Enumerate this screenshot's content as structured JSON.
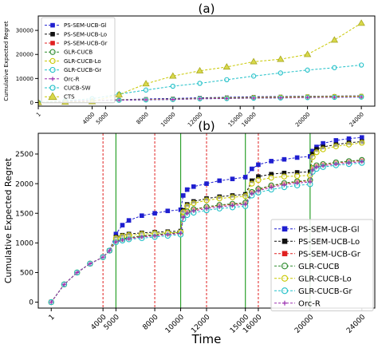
{
  "chart_data": [
    {
      "panel_label": "(a)",
      "type": "line",
      "title": "",
      "xlabel": "",
      "ylabel": "Cumulative Expected Regret",
      "xlim": [
        0,
        25000
      ],
      "ylim": [
        -1500,
        36000
      ],
      "xticks": [
        1,
        4000,
        5000,
        8000,
        10000,
        12000,
        15000,
        16000,
        20000,
        24000
      ],
      "yticks": [
        0,
        10000,
        20000,
        30000
      ],
      "legend_position": "top-left",
      "series": [
        {
          "name": "PS-SEM-UCB-Gl",
          "color": "#1f1fd0",
          "dash": "3,2",
          "marker": "square",
          "x": [
            1,
            2000,
            4000,
            6000,
            8000,
            10000,
            12000,
            14000,
            16000,
            18000,
            20000,
            22000,
            24000
          ],
          "y": [
            0,
            500,
            800,
            1200,
            1500,
            1700,
            2000,
            2200,
            2400,
            2500,
            2600,
            2700,
            2800
          ]
        },
        {
          "name": "PS-SEM-UCB-Lo",
          "color": "#111111",
          "dash": "3,2",
          "marker": "square",
          "x": [
            1,
            2000,
            4000,
            6000,
            8000,
            10000,
            12000,
            14000,
            16000,
            18000,
            20000,
            22000,
            24000
          ],
          "y": [
            0,
            500,
            800,
            1100,
            1300,
            1500,
            1800,
            2000,
            2200,
            2300,
            2450,
            2550,
            2650
          ]
        },
        {
          "name": "PS-SEM-UCB-Gr",
          "color": "#e02020",
          "dash": "3,2",
          "marker": "square",
          "x": [
            1,
            2000,
            4000,
            6000,
            8000,
            10000,
            12000,
            14000,
            16000,
            18000,
            20000,
            22000,
            24000
          ],
          "y": [
            0,
            500,
            800,
            1000,
            1150,
            1300,
            1600,
            1750,
            1900,
            2000,
            2150,
            2250,
            2350
          ]
        },
        {
          "name": "GLR-CUCB",
          "color": "#2e8b2e",
          "dash": "3,2",
          "marker": "circle",
          "x": [
            1,
            2000,
            4000,
            6000,
            8000,
            10000,
            12000,
            14000,
            16000,
            18000,
            20000,
            22000,
            24000
          ],
          "y": [
            0,
            500,
            800,
            1050,
            1200,
            1350,
            1650,
            1800,
            1950,
            2050,
            2200,
            2300,
            2400
          ]
        },
        {
          "name": "GLR-CUCB-Lo",
          "color": "#c8c800",
          "dash": "3,2",
          "marker": "circle",
          "x": [
            1,
            2000,
            4000,
            6000,
            8000,
            10000,
            12000,
            14000,
            16000,
            18000,
            20000,
            22000,
            24000
          ],
          "y": [
            0,
            500,
            800,
            1100,
            1250,
            1400,
            1700,
            1900,
            2100,
            2250,
            2400,
            2550,
            2650
          ]
        },
        {
          "name": "GLR-CUCB-Gr",
          "color": "#20c0c8",
          "dash": "3,2",
          "marker": "circle",
          "x": [
            1,
            2000,
            4000,
            6000,
            8000,
            10000,
            12000,
            14000,
            16000,
            18000,
            20000,
            22000,
            24000
          ],
          "y": [
            0,
            500,
            800,
            950,
            1100,
            1250,
            1550,
            1650,
            1800,
            1900,
            2050,
            2150,
            2250
          ]
        },
        {
          "name": "Orc-R",
          "color": "#9b30b0",
          "dash": "3,2",
          "marker": "plus",
          "x": [
            1,
            2000,
            4000,
            6000,
            8000,
            10000,
            12000,
            14000,
            16000,
            18000,
            20000,
            22000,
            24000
          ],
          "y": [
            0,
            450,
            750,
            1000,
            1150,
            1300,
            1600,
            1700,
            1850,
            1950,
            2100,
            2200,
            2300
          ]
        },
        {
          "name": "CUCB-SW",
          "color": "#20c0c8",
          "dash": "3,2",
          "marker": "circle",
          "x": [
            1,
            2000,
            4000,
            6000,
            8000,
            10000,
            12000,
            14000,
            16000,
            18000,
            20000,
            22000,
            24000
          ],
          "y": [
            0,
            800,
            1600,
            3500,
            5200,
            6800,
            8000,
            9500,
            11000,
            12300,
            13500,
            14500,
            15600
          ]
        },
        {
          "name": "CTS",
          "color": "#c8c800",
          "dash": "3,2",
          "marker": "triangle",
          "x": [
            1,
            2000,
            4000,
            6000,
            8000,
            10000,
            12000,
            14000,
            16000,
            18000,
            20000,
            22000,
            24000
          ],
          "y": [
            0,
            200,
            400,
            3300,
            7800,
            11000,
            13200,
            14800,
            17000,
            18000,
            20000,
            26000,
            33000
          ]
        }
      ]
    },
    {
      "panel_label": "(b)",
      "type": "line",
      "title": "",
      "xlabel": "Time",
      "ylabel": "Cumulative Expected Regret",
      "xlim": [
        -1000,
        25000
      ],
      "ylim": [
        -100,
        2850
      ],
      "xticks": [
        1,
        4000,
        5000,
        8000,
        10000,
        12000,
        15000,
        16000,
        20000,
        24000
      ],
      "yticks": [
        0,
        500,
        1000,
        1500,
        2000,
        2500
      ],
      "legend_position": "lower-right",
      "vlines_red": [
        4000,
        8000,
        12000,
        16000
      ],
      "vlines_green": [
        5000,
        10000,
        15000,
        20000
      ],
      "series": [
        {
          "name": "PS-SEM-UCB-Gl",
          "color": "#1f1fd0",
          "dash": "3,2",
          "marker": "square",
          "x": [
            1,
            1000,
            2000,
            3000,
            4000,
            4500,
            5000,
            5500,
            6000,
            7000,
            8000,
            9000,
            10000,
            10200,
            10500,
            11000,
            12000,
            13000,
            14000,
            15000,
            15500,
            16000,
            17000,
            18000,
            19000,
            20000,
            20200,
            20500,
            21000,
            22000,
            23000,
            24000
          ],
          "y": [
            0,
            300,
            500,
            650,
            760,
            870,
            1150,
            1300,
            1380,
            1460,
            1500,
            1540,
            1560,
            1800,
            1900,
            1950,
            2000,
            2050,
            2080,
            2110,
            2250,
            2320,
            2380,
            2410,
            2440,
            2460,
            2550,
            2620,
            2680,
            2730,
            2760,
            2780
          ]
        },
        {
          "name": "PS-SEM-UCB-Lo",
          "color": "#111111",
          "dash": "3,2",
          "marker": "square",
          "x": [
            1,
            1000,
            2000,
            3000,
            4000,
            4500,
            5000,
            5500,
            6000,
            7000,
            8000,
            9000,
            10000,
            10200,
            10500,
            11000,
            12000,
            13000,
            14000,
            15000,
            15500,
            16000,
            17000,
            18000,
            19000,
            20000,
            20200,
            20500,
            21000,
            22000,
            23000,
            24000
          ],
          "y": [
            0,
            300,
            500,
            650,
            760,
            870,
            1100,
            1130,
            1150,
            1170,
            1180,
            1190,
            1200,
            1550,
            1650,
            1700,
            1750,
            1780,
            1800,
            1820,
            2050,
            2120,
            2160,
            2180,
            2190,
            2200,
            2500,
            2580,
            2620,
            2660,
            2690,
            2710
          ]
        },
        {
          "name": "PS-SEM-UCB-Gr",
          "color": "#e02020",
          "dash": "3,2",
          "marker": "square",
          "x": [
            1,
            1000,
            2000,
            3000,
            4000,
            4500,
            5000,
            5500,
            6000,
            7000,
            8000,
            9000,
            10000,
            10200,
            10500,
            11000,
            12000,
            13000,
            14000,
            15000,
            15500,
            16000,
            17000,
            18000,
            19000,
            20000,
            20200,
            20500,
            21000,
            22000,
            23000,
            24000
          ],
          "y": [
            0,
            300,
            500,
            650,
            760,
            870,
            1030,
            1060,
            1080,
            1110,
            1130,
            1150,
            1170,
            1450,
            1520,
            1560,
            1600,
            1630,
            1650,
            1670,
            1850,
            1900,
            1960,
            2000,
            2030,
            2050,
            2250,
            2300,
            2320,
            2350,
            2370,
            2390
          ]
        },
        {
          "name": "GLR-CUCB",
          "color": "#2e8b2e",
          "dash": "3,2",
          "marker": "circle",
          "x": [
            1,
            1000,
            2000,
            3000,
            4000,
            4500,
            5000,
            5500,
            6000,
            7000,
            8000,
            9000,
            10000,
            10200,
            10500,
            11000,
            12000,
            13000,
            14000,
            15000,
            15500,
            16000,
            17000,
            18000,
            19000,
            20000,
            20200,
            20500,
            21000,
            22000,
            23000,
            24000
          ],
          "y": [
            0,
            300,
            500,
            650,
            760,
            870,
            1040,
            1070,
            1090,
            1120,
            1140,
            1160,
            1180,
            1460,
            1530,
            1570,
            1610,
            1640,
            1660,
            1680,
            1860,
            1910,
            1970,
            2010,
            2040,
            2060,
            2260,
            2310,
            2330,
            2360,
            2380,
            2400
          ]
        },
        {
          "name": "GLR-CUCB-Lo",
          "color": "#c8c800",
          "dash": "3,2",
          "marker": "circle",
          "x": [
            1,
            1000,
            2000,
            3000,
            4000,
            4500,
            5000,
            5500,
            6000,
            7000,
            8000,
            9000,
            10000,
            10200,
            10500,
            11000,
            12000,
            13000,
            14000,
            15000,
            15500,
            16000,
            17000,
            18000,
            19000,
            20000,
            20200,
            20500,
            21000,
            22000,
            23000,
            24000
          ],
          "y": [
            0,
            300,
            500,
            650,
            760,
            870,
            1080,
            1110,
            1130,
            1150,
            1160,
            1170,
            1180,
            1520,
            1620,
            1670,
            1720,
            1750,
            1770,
            1790,
            2000,
            2060,
            2100,
            2120,
            2130,
            2140,
            2450,
            2530,
            2580,
            2630,
            2660,
            2690
          ]
        },
        {
          "name": "GLR-CUCB-Gr",
          "color": "#20c0c8",
          "dash": "3,2",
          "marker": "circle",
          "x": [
            1,
            1000,
            2000,
            3000,
            4000,
            4500,
            5000,
            5500,
            6000,
            7000,
            8000,
            9000,
            10000,
            10200,
            10500,
            11000,
            12000,
            13000,
            14000,
            15000,
            15500,
            16000,
            17000,
            18000,
            19000,
            20000,
            20200,
            20500,
            21000,
            22000,
            23000,
            24000
          ],
          "y": [
            0,
            300,
            500,
            650,
            760,
            870,
            1010,
            1040,
            1060,
            1080,
            1100,
            1120,
            1140,
            1400,
            1470,
            1510,
            1550,
            1580,
            1600,
            1620,
            1800,
            1850,
            1900,
            1940,
            1970,
            1990,
            2200,
            2250,
            2280,
            2310,
            2330,
            2350
          ]
        },
        {
          "name": "Orc-R",
          "color": "#9b30b0",
          "dash": "3,2",
          "marker": "plus",
          "x": [
            1,
            1000,
            2000,
            3000,
            4000,
            4500,
            5000,
            5500,
            6000,
            7000,
            8000,
            9000,
            10000,
            10200,
            10500,
            11000,
            12000,
            13000,
            14000,
            15000,
            15500,
            16000,
            17000,
            18000,
            19000,
            20000,
            20200,
            20500,
            21000,
            22000,
            23000,
            24000
          ],
          "y": [
            0,
            300,
            500,
            650,
            760,
            870,
            1020,
            1050,
            1070,
            1100,
            1120,
            1140,
            1160,
            1430,
            1500,
            1540,
            1580,
            1610,
            1630,
            1650,
            1830,
            1880,
            1940,
            1980,
            2010,
            2030,
            2230,
            2280,
            2300,
            2330,
            2350,
            2370
          ]
        }
      ]
    }
  ]
}
